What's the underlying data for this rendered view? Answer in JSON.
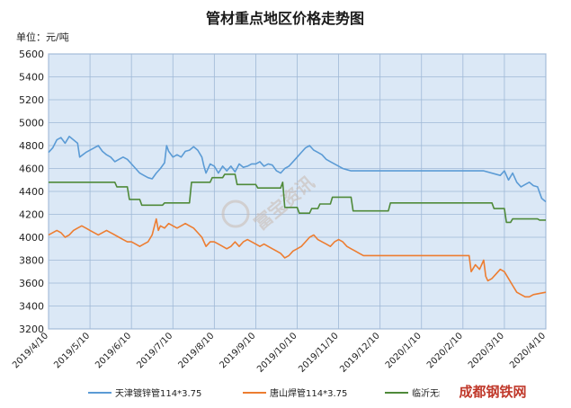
{
  "chart_data": {
    "type": "line",
    "title": "管材重点地区价格走势图",
    "unit_label": "单位：元/吨",
    "ylim": [
      3200,
      5600
    ],
    "ytick_step": 200,
    "yticks": [
      "3200",
      "3400",
      "3600",
      "3800",
      "4000",
      "4200",
      "4400",
      "4600",
      "4800",
      "5000",
      "5200",
      "5400",
      "5600"
    ],
    "xtick_labels": [
      "2019/4/10",
      "2019/5/10",
      "2019/6/10",
      "2019/7/10",
      "2019/8/10",
      "2019/9/10",
      "2019/10/10",
      "2019/11/10",
      "2019/12/10",
      "2020/1/10",
      "2020/2/10",
      "2020/3/10",
      "2020/4/10"
    ],
    "grid": true,
    "legend_position": "bottom",
    "watermark": "富宝资讯",
    "logo_text": "成都钢铁网",
    "colors": {
      "plot_bg": "#dbe8f6",
      "series1": "#5b9bd5",
      "series2": "#ed7d31",
      "series3": "#4f8a3a"
    },
    "series": [
      {
        "name": "天津镀锌管114*3.75",
        "color": "#5b9bd5",
        "points": [
          [
            0,
            4740
          ],
          [
            0.1,
            4780
          ],
          [
            0.2,
            4850
          ],
          [
            0.3,
            4870
          ],
          [
            0.4,
            4820
          ],
          [
            0.5,
            4880
          ],
          [
            0.6,
            4850
          ],
          [
            0.7,
            4820
          ],
          [
            0.75,
            4700
          ],
          [
            0.9,
            4740
          ],
          [
            1,
            4760
          ],
          [
            1.1,
            4780
          ],
          [
            1.2,
            4800
          ],
          [
            1.3,
            4750
          ],
          [
            1.4,
            4720
          ],
          [
            1.5,
            4700
          ],
          [
            1.6,
            4660
          ],
          [
            1.7,
            4680
          ],
          [
            1.8,
            4700
          ],
          [
            1.9,
            4680
          ],
          [
            2.0,
            4640
          ],
          [
            2.1,
            4600
          ],
          [
            2.2,
            4560
          ],
          [
            2.3,
            4540
          ],
          [
            2.4,
            4520
          ],
          [
            2.5,
            4510
          ],
          [
            2.6,
            4560
          ],
          [
            2.7,
            4600
          ],
          [
            2.8,
            4650
          ],
          [
            2.85,
            4800
          ],
          [
            2.9,
            4750
          ],
          [
            3.0,
            4700
          ],
          [
            3.1,
            4720
          ],
          [
            3.2,
            4700
          ],
          [
            3.3,
            4750
          ],
          [
            3.4,
            4760
          ],
          [
            3.5,
            4790
          ],
          [
            3.6,
            4760
          ],
          [
            3.7,
            4700
          ],
          [
            3.75,
            4620
          ],
          [
            3.8,
            4560
          ],
          [
            3.9,
            4640
          ],
          [
            4.0,
            4620
          ],
          [
            4.1,
            4560
          ],
          [
            4.2,
            4620
          ],
          [
            4.3,
            4580
          ],
          [
            4.4,
            4620
          ],
          [
            4.5,
            4570
          ],
          [
            4.6,
            4640
          ],
          [
            4.7,
            4610
          ],
          [
            4.8,
            4620
          ],
          [
            4.9,
            4640
          ],
          [
            5.0,
            4640
          ],
          [
            5.1,
            4660
          ],
          [
            5.2,
            4620
          ],
          [
            5.3,
            4640
          ],
          [
            5.4,
            4630
          ],
          [
            5.5,
            4580
          ],
          [
            5.6,
            4560
          ],
          [
            5.7,
            4600
          ],
          [
            5.8,
            4620
          ],
          [
            5.9,
            4660
          ],
          [
            6.0,
            4700
          ],
          [
            6.1,
            4740
          ],
          [
            6.2,
            4780
          ],
          [
            6.3,
            4800
          ],
          [
            6.4,
            4760
          ],
          [
            6.5,
            4740
          ],
          [
            6.6,
            4720
          ],
          [
            6.7,
            4680
          ],
          [
            6.8,
            4660
          ],
          [
            6.9,
            4640
          ],
          [
            7.0,
            4620
          ],
          [
            7.1,
            4600
          ],
          [
            7.2,
            4590
          ],
          [
            7.3,
            4580
          ],
          [
            8,
            4580
          ],
          [
            9,
            4580
          ],
          [
            10,
            4580
          ],
          [
            10.5,
            4580
          ],
          [
            10.9,
            4540
          ],
          [
            11.0,
            4580
          ],
          [
            11.1,
            4500
          ],
          [
            11.2,
            4560
          ],
          [
            11.3,
            4480
          ],
          [
            11.4,
            4440
          ],
          [
            11.5,
            4460
          ],
          [
            11.6,
            4480
          ],
          [
            11.7,
            4450
          ],
          [
            11.8,
            4440
          ],
          [
            11.9,
            4340
          ],
          [
            12,
            4310
          ]
        ]
      },
      {
        "name": "唐山焊管114*3.75",
        "color": "#ed7d31",
        "points": [
          [
            0,
            4020
          ],
          [
            0.1,
            4040
          ],
          [
            0.2,
            4060
          ],
          [
            0.3,
            4040
          ],
          [
            0.4,
            4000
          ],
          [
            0.5,
            4020
          ],
          [
            0.6,
            4060
          ],
          [
            0.7,
            4080
          ],
          [
            0.8,
            4100
          ],
          [
            0.9,
            4080
          ],
          [
            1.0,
            4060
          ],
          [
            1.1,
            4040
          ],
          [
            1.2,
            4020
          ],
          [
            1.3,
            4040
          ],
          [
            1.4,
            4060
          ],
          [
            1.5,
            4040
          ],
          [
            1.6,
            4020
          ],
          [
            1.7,
            4000
          ],
          [
            1.8,
            3980
          ],
          [
            1.9,
            3960
          ],
          [
            2.0,
            3960
          ],
          [
            2.1,
            3940
          ],
          [
            2.2,
            3920
          ],
          [
            2.3,
            3940
          ],
          [
            2.4,
            3960
          ],
          [
            2.5,
            4020
          ],
          [
            2.6,
            4160
          ],
          [
            2.65,
            4060
          ],
          [
            2.7,
            4100
          ],
          [
            2.8,
            4080
          ],
          [
            2.9,
            4120
          ],
          [
            3.0,
            4100
          ],
          [
            3.1,
            4080
          ],
          [
            3.2,
            4100
          ],
          [
            3.3,
            4120
          ],
          [
            3.4,
            4100
          ],
          [
            3.5,
            4080
          ],
          [
            3.6,
            4040
          ],
          [
            3.7,
            4000
          ],
          [
            3.8,
            3920
          ],
          [
            3.9,
            3960
          ],
          [
            4.0,
            3960
          ],
          [
            4.1,
            3940
          ],
          [
            4.2,
            3920
          ],
          [
            4.3,
            3900
          ],
          [
            4.4,
            3920
          ],
          [
            4.5,
            3960
          ],
          [
            4.6,
            3920
          ],
          [
            4.7,
            3960
          ],
          [
            4.8,
            3980
          ],
          [
            4.9,
            3960
          ],
          [
            5.0,
            3940
          ],
          [
            5.1,
            3920
          ],
          [
            5.2,
            3940
          ],
          [
            5.3,
            3920
          ],
          [
            5.4,
            3900
          ],
          [
            5.5,
            3880
          ],
          [
            5.6,
            3860
          ],
          [
            5.7,
            3820
          ],
          [
            5.8,
            3840
          ],
          [
            5.9,
            3880
          ],
          [
            6.0,
            3900
          ],
          [
            6.1,
            3920
          ],
          [
            6.2,
            3960
          ],
          [
            6.3,
            4000
          ],
          [
            6.4,
            4020
          ],
          [
            6.5,
            3980
          ],
          [
            6.6,
            3960
          ],
          [
            6.7,
            3940
          ],
          [
            6.8,
            3920
          ],
          [
            6.9,
            3960
          ],
          [
            7.0,
            3980
          ],
          [
            7.1,
            3960
          ],
          [
            7.2,
            3920
          ],
          [
            7.3,
            3900
          ],
          [
            7.4,
            3880
          ],
          [
            7.5,
            3860
          ],
          [
            7.6,
            3840
          ],
          [
            8,
            3840
          ],
          [
            9,
            3840
          ],
          [
            10,
            3840
          ],
          [
            10.15,
            3840
          ],
          [
            10.2,
            3700
          ],
          [
            10.3,
            3760
          ],
          [
            10.4,
            3720
          ],
          [
            10.5,
            3800
          ],
          [
            10.55,
            3660
          ],
          [
            10.6,
            3620
          ],
          [
            10.7,
            3640
          ],
          [
            10.8,
            3680
          ],
          [
            10.9,
            3720
          ],
          [
            11.0,
            3700
          ],
          [
            11.1,
            3640
          ],
          [
            11.2,
            3580
          ],
          [
            11.3,
            3520
          ],
          [
            11.4,
            3500
          ],
          [
            11.5,
            3480
          ],
          [
            11.6,
            3480
          ],
          [
            11.7,
            3500
          ],
          [
            12,
            3520
          ]
        ]
      },
      {
        "name": "临沂无缝管",
        "color": "#4f8a3a",
        "points": [
          [
            0,
            4480
          ],
          [
            1,
            4480
          ],
          [
            1.6,
            4480
          ],
          [
            1.65,
            4440
          ],
          [
            1.9,
            4440
          ],
          [
            1.95,
            4330
          ],
          [
            2.2,
            4330
          ],
          [
            2.25,
            4280
          ],
          [
            2.75,
            4280
          ],
          [
            2.8,
            4300
          ],
          [
            3.4,
            4300
          ],
          [
            3.45,
            4480
          ],
          [
            3.9,
            4480
          ],
          [
            3.95,
            4520
          ],
          [
            4.2,
            4520
          ],
          [
            4.25,
            4550
          ],
          [
            4.5,
            4550
          ],
          [
            4.55,
            4460
          ],
          [
            5.0,
            4460
          ],
          [
            5.05,
            4430
          ],
          [
            5.6,
            4430
          ],
          [
            5.65,
            4480
          ],
          [
            5.7,
            4260
          ],
          [
            6.0,
            4260
          ],
          [
            6.05,
            4210
          ],
          [
            6.3,
            4210
          ],
          [
            6.35,
            4250
          ],
          [
            6.5,
            4250
          ],
          [
            6.55,
            4290
          ],
          [
            6.8,
            4290
          ],
          [
            6.85,
            4350
          ],
          [
            7.3,
            4350
          ],
          [
            7.35,
            4230
          ],
          [
            8.2,
            4230
          ],
          [
            8.25,
            4300
          ],
          [
            10,
            4300
          ],
          [
            10.7,
            4300
          ],
          [
            10.75,
            4250
          ],
          [
            11.0,
            4250
          ],
          [
            11.05,
            4130
          ],
          [
            11.15,
            4130
          ],
          [
            11.2,
            4160
          ],
          [
            11.8,
            4160
          ],
          [
            11.85,
            4150
          ],
          [
            12,
            4150
          ]
        ]
      }
    ]
  }
}
